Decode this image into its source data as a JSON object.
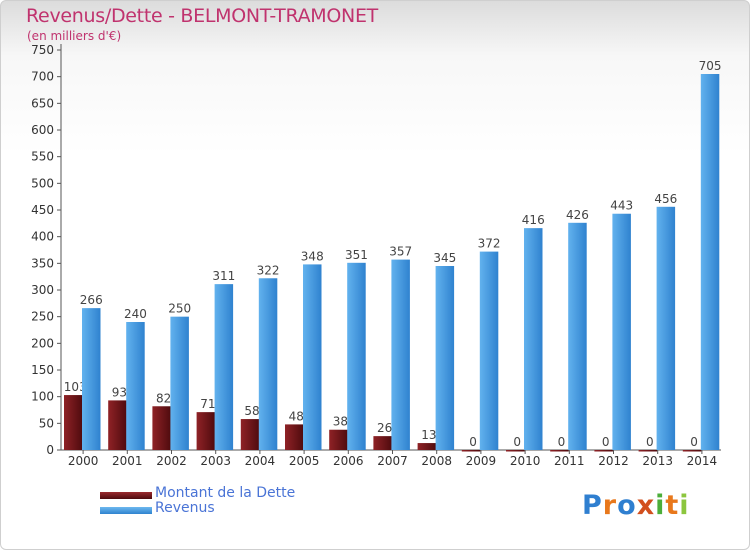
{
  "title": "Revenus/Dette - BELMONT-TRAMONET",
  "subtitle": "(en milliers d'€)",
  "legend": [
    {
      "label": "Montant de la Dette",
      "color": "#7a1418"
    },
    {
      "label": "Revenus",
      "color": "#3f97e0"
    }
  ],
  "logo": {
    "text": "Proxiti",
    "colors": [
      "#2f7fd0",
      "#e8781c",
      "#2f7fd0",
      "#d24f1e",
      "#4cae3a",
      "#e8781c",
      "#8cc63e"
    ]
  },
  "chart_data": {
    "type": "bar",
    "categories": [
      "2000",
      "2001",
      "2002",
      "2003",
      "2004",
      "2005",
      "2006",
      "2007",
      "2008",
      "2009",
      "2010",
      "2011",
      "2012",
      "2013",
      "2014"
    ],
    "series": [
      {
        "name": "Montant de la Dette",
        "color": "#7a1418",
        "values": [
          103,
          93,
          82,
          71,
          58,
          48,
          38,
          26,
          13,
          0,
          0,
          0,
          0,
          0,
          0
        ]
      },
      {
        "name": "Revenus",
        "color": "#3f97e0",
        "values": [
          266,
          240,
          250,
          311,
          322,
          348,
          351,
          357,
          345,
          372,
          416,
          426,
          443,
          456,
          705
        ]
      }
    ],
    "yticks": [
      0,
      50,
      100,
      150,
      200,
      250,
      300,
      350,
      400,
      450,
      500,
      550,
      600,
      650,
      700,
      750
    ],
    "ylim": [
      0,
      750
    ],
    "grid": false,
    "legend_position": "bottom-left"
  }
}
